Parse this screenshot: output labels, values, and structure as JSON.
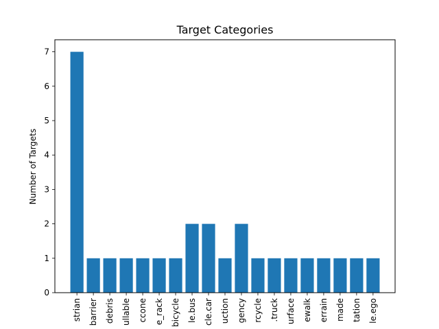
{
  "chart_data": {
    "type": "bar",
    "title": "Target Categories",
    "xlabel": "",
    "ylabel": "Number of Targets",
    "ylim": [
      0,
      7.35
    ],
    "yticks": [
      0,
      1,
      2,
      3,
      4,
      5,
      6,
      7
    ],
    "bar_color": "#1f77b4",
    "grid": false,
    "categories": [
      "strian",
      "barrier",
      "debris",
      "ullable",
      "ccone",
      "e_rack",
      "bicycle",
      "le.bus",
      "cle.car",
      "uction",
      "gency",
      "rcycle",
      ".truck",
      "urface",
      "ewalk",
      "errain",
      "made",
      "tation",
      "le.ego"
    ],
    "values": [
      7,
      1,
      1,
      1,
      1,
      1,
      1,
      2,
      2,
      1,
      2,
      1,
      1,
      1,
      1,
      1,
      1,
      1,
      1
    ]
  }
}
